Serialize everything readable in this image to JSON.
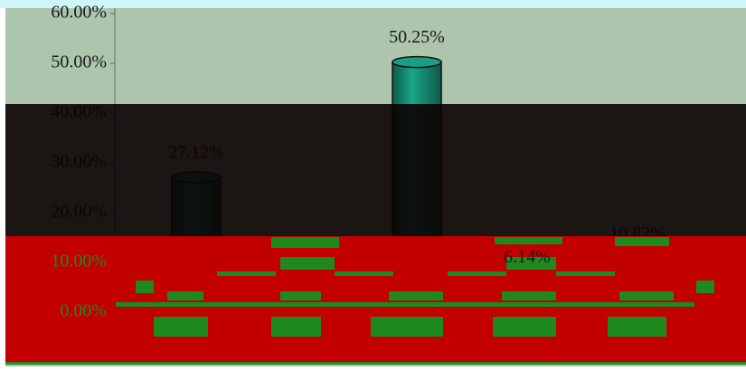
{
  "chart_data": {
    "type": "bar",
    "values": [
      27.12,
      null,
      50.25,
      6.14,
      10.82
    ],
    "value_labels": [
      "27.12%",
      null,
      "50.25%",
      "6.14%",
      "10.82%"
    ],
    "color": "#138a72",
    "ylim": [
      0,
      60
    ],
    "yticks": [
      {
        "value": 0,
        "label": "0.00%"
      },
      {
        "value": 10,
        "label": "10.00%"
      },
      {
        "value": 20,
        "label": "20.00%"
      },
      {
        "value": 30,
        "label": "30.00%"
      },
      {
        "value": 40,
        "label": "40.00%"
      },
      {
        "value": 50,
        "label": "50.00%"
      },
      {
        "value": 60,
        "label": "60.00%"
      }
    ]
  }
}
